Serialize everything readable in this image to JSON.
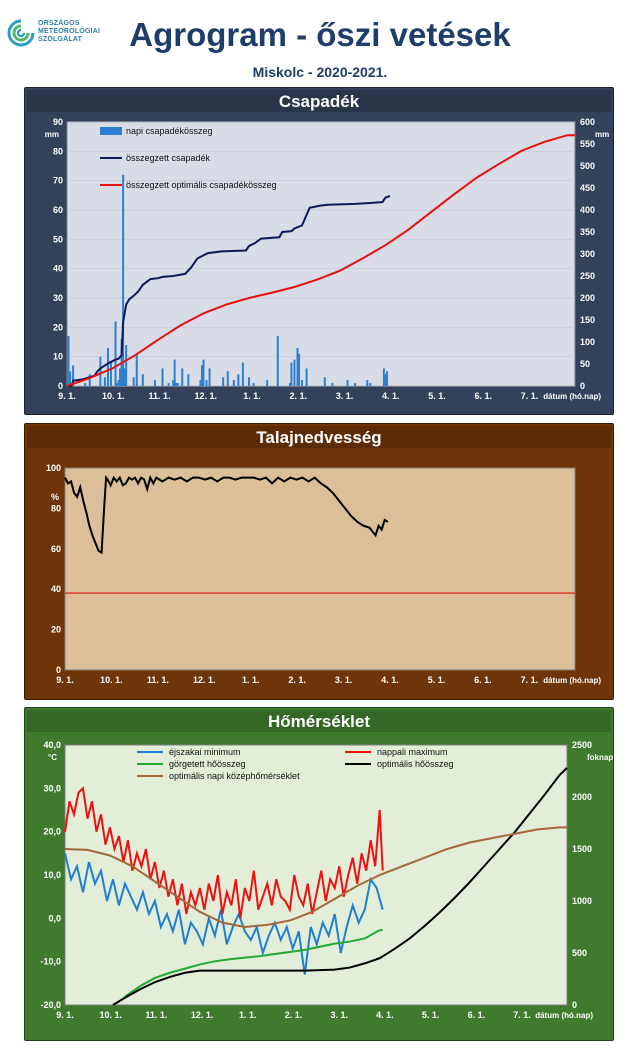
{
  "header": {
    "logo_lines": [
      "ORSZÁGOS",
      "METEOROLÓGIAI",
      "SZOLGÁLAT"
    ],
    "title": "Agrogram - őszi vetések",
    "subtitle": "Miskolc - 2020-2021."
  },
  "chart_data": [
    {
      "type": "bar",
      "title": "Csapadék",
      "ylabel_left": "mm",
      "ylabel_right": "mm",
      "xlabel": "dátum (hó.nap)",
      "x_ticks": [
        "9. 1.",
        "10. 1.",
        "11. 1.",
        "12. 1.",
        "1. 1.",
        "2. 1.",
        "3. 1.",
        "4. 1.",
        "5. 1.",
        "6. 1.",
        "7. 1."
      ],
      "y_left_ticks": [
        "0",
        "10",
        "20",
        "30",
        "40",
        "50",
        "60",
        "70",
        "80",
        "90"
      ],
      "y_right_ticks": [
        "0",
        "50",
        "100",
        "150",
        "200",
        "250",
        "300",
        "350",
        "400",
        "450",
        "500",
        "550",
        "600"
      ],
      "ylim_left": [
        0,
        90
      ],
      "ylim_right": [
        0,
        600
      ],
      "grid": true,
      "legend_position": "top-left",
      "series": [
        {
          "name": "napi csapadékösszeg",
          "kind": "bar",
          "axis": "left",
          "color": "#2f7fd0",
          "x_days": [
            1,
            2,
            4,
            12,
            15,
            22,
            25,
            27,
            29,
            32,
            33,
            34,
            35,
            36,
            37,
            38,
            39,
            44,
            46,
            50,
            58,
            63,
            67,
            70,
            71,
            72,
            73,
            76,
            80,
            88,
            89,
            90,
            92,
            94,
            103,
            106,
            110,
            113,
            116,
            120,
            123,
            132,
            139,
            147,
            148,
            150,
            152,
            153,
            155,
            158,
            170,
            175,
            185,
            190,
            198,
            200,
            209,
            210,
            211
          ],
          "values": [
            17,
            5,
            7,
            1,
            4,
            10,
            3,
            13,
            8,
            22,
            1,
            2,
            6,
            16,
            72,
            6,
            14,
            3,
            11,
            4,
            2,
            6,
            1,
            2,
            9,
            1,
            1,
            6,
            4,
            2,
            7,
            9,
            2,
            6,
            3,
            5,
            2,
            4,
            8,
            3,
            1,
            2,
            17,
            1,
            8,
            9,
            13,
            11,
            2,
            6,
            3,
            1,
            2,
            1,
            2,
            1,
            6,
            4,
            5
          ]
        },
        {
          "name": "összegzett csapadék",
          "kind": "line",
          "axis": "right",
          "color": "#0c1a55",
          "x_days": [
            0,
            3,
            4,
            10,
            15,
            18,
            20,
            22,
            28,
            32,
            34,
            36,
            37,
            39,
            41,
            44,
            47,
            50,
            55,
            60,
            63,
            70,
            78,
            82,
            86,
            93,
            102,
            118,
            120,
            124,
            128,
            140,
            142,
            148,
            150,
            155,
            160,
            167,
            172,
            190,
            200,
            208,
            210,
            213
          ],
          "values": [
            0,
            0,
            12,
            15,
            20,
            23,
            33,
            40,
            53,
            60,
            62,
            70,
            145,
            185,
            197,
            205,
            215,
            230,
            243,
            245,
            248,
            250,
            255,
            270,
            290,
            302,
            306,
            308,
            318,
            325,
            335,
            338,
            350,
            352,
            358,
            365,
            405,
            410,
            412,
            414,
            416,
            418,
            428,
            432
          ]
        },
        {
          "name": "összegzett optimális  csapadékösszeg",
          "kind": "line",
          "axis": "right",
          "color": "#e81010",
          "x_days": [
            0,
            15,
            30,
            45,
            60,
            75,
            90,
            105,
            120,
            135,
            150,
            165,
            180,
            195,
            210,
            225,
            240,
            255,
            270,
            285,
            300,
            315,
            330,
            335
          ],
          "values": [
            0,
            18,
            40,
            70,
            105,
            138,
            165,
            185,
            200,
            212,
            225,
            242,
            262,
            290,
            320,
            355,
            395,
            435,
            473,
            505,
            535,
            555,
            570,
            570
          ]
        }
      ]
    },
    {
      "type": "line",
      "title": "Talajnedvesség",
      "ylabel": "%",
      "xlabel": "dátum (hó.nap)",
      "x_ticks": [
        "9. 1.",
        "10. 1.",
        "11. 1.",
        "12. 1.",
        "1. 1.",
        "2. 1.",
        "3. 1.",
        "4. 1.",
        "5. 1.",
        "6. 1.",
        "7. 1."
      ],
      "y_ticks": [
        "0",
        "20",
        "40",
        "60",
        "80",
        "100"
      ],
      "ylim": [
        0,
        105
      ],
      "reference_line": 40,
      "grid": false,
      "series": [
        {
          "name": "",
          "color": "#000000",
          "x_days": [
            0,
            2,
            4,
            6,
            8,
            10,
            12,
            14,
            16,
            18,
            20,
            22,
            24,
            26,
            27,
            28,
            30,
            32,
            34,
            36,
            38,
            40,
            42,
            44,
            46,
            48,
            50,
            52,
            54,
            56,
            58,
            60,
            64,
            68,
            72,
            76,
            80,
            84,
            88,
            92,
            96,
            100,
            104,
            108,
            112,
            116,
            120,
            124,
            128,
            132,
            136,
            140,
            144,
            148,
            152,
            156,
            160,
            164,
            168,
            172,
            176,
            180,
            184,
            188,
            192,
            196,
            200,
            202,
            204,
            206,
            208,
            210,
            212
          ],
          "values": [
            100,
            97,
            98,
            92,
            90,
            95,
            88,
            82,
            75,
            70,
            66,
            62,
            61,
            88,
            100,
            99,
            96,
            100,
            98,
            100,
            96,
            97,
            100,
            99,
            100,
            97,
            100,
            99,
            94,
            100,
            97,
            100,
            98,
            100,
            99,
            100,
            98,
            100,
            100,
            99,
            100,
            98,
            100,
            100,
            99,
            100,
            100,
            100,
            99,
            100,
            97,
            100,
            98,
            100,
            99,
            100,
            98,
            100,
            97,
            95,
            92,
            88,
            84,
            80,
            77,
            75,
            74,
            72,
            70,
            75,
            73,
            78,
            77
          ]
        }
      ]
    },
    {
      "type": "line",
      "title": "Hőmérséklet",
      "ylabel_left": "°C",
      "ylabel_right": "foknap",
      "xlabel": "dátum (hó.nap)",
      "x_ticks": [
        "9. 1.",
        "10. 1.",
        "11. 1.",
        "12. 1.",
        "1. 1.",
        "2. 1.",
        "3. 1.",
        "4. 1.",
        "5. 1.",
        "6. 1.",
        "7. 1."
      ],
      "y_left_ticks": [
        "-20,0",
        "-10,0",
        "0,0",
        "10,0",
        "20,0",
        "30,0",
        "40,0"
      ],
      "y_right_ticks": [
        "0",
        "500",
        "1000",
        "1500",
        "2000",
        "2500"
      ],
      "ylim_left": [
        -20,
        40
      ],
      "ylim_right": [
        0,
        2500
      ],
      "grid": false,
      "legend_position": "top",
      "series": [
        {
          "name": "éjszakai minimum",
          "axis": "left",
          "color": "#1f7fd0",
          "x_days": [
            0,
            4,
            8,
            12,
            16,
            20,
            24,
            28,
            32,
            36,
            40,
            44,
            48,
            52,
            56,
            60,
            64,
            68,
            72,
            76,
            80,
            84,
            88,
            92,
            96,
            100,
            104,
            108,
            112,
            116,
            120,
            124,
            128,
            132,
            136,
            140,
            144,
            148,
            152,
            156,
            160,
            164,
            168,
            172,
            176,
            180,
            184,
            188,
            192,
            196,
            200,
            204,
            208,
            212
          ],
          "values": [
            15,
            9,
            12,
            6,
            13,
            8,
            11,
            4,
            9,
            3,
            8,
            5,
            2,
            6,
            1,
            4,
            -2,
            1,
            -3,
            2,
            -6,
            -1,
            -3,
            -6,
            0,
            -4,
            2,
            -6,
            -2,
            1,
            -3,
            -5,
            -2,
            -8,
            -4,
            -1,
            -5,
            -2,
            -7,
            -3,
            -13,
            -2,
            -6,
            -1,
            -4,
            1,
            -8,
            -2,
            3,
            -1,
            2,
            9,
            7,
            2
          ]
        },
        {
          "name": "nappali maximum",
          "axis": "left",
          "color": "#ee1111",
          "x_days": [
            0,
            3,
            6,
            9,
            12,
            15,
            18,
            21,
            24,
            27,
            30,
            33,
            36,
            39,
            42,
            45,
            48,
            51,
            54,
            57,
            60,
            63,
            66,
            69,
            72,
            75,
            78,
            81,
            84,
            87,
            90,
            93,
            96,
            99,
            102,
            105,
            108,
            111,
            114,
            117,
            120,
            123,
            126,
            129,
            132,
            135,
            138,
            141,
            144,
            147,
            150,
            153,
            156,
            159,
            162,
            165,
            168,
            171,
            174,
            177,
            180,
            183,
            186,
            189,
            192,
            195,
            198,
            201,
            204,
            207,
            210,
            212
          ],
          "values": [
            20,
            27,
            24,
            29,
            30,
            23,
            27,
            20,
            24,
            17,
            21,
            16,
            19,
            13,
            18,
            11,
            15,
            12,
            16,
            9,
            13,
            7,
            11,
            5,
            9,
            3,
            8,
            1,
            6,
            3,
            7,
            2,
            8,
            4,
            10,
            1,
            6,
            3,
            9,
            0,
            7,
            4,
            11,
            2,
            5,
            8,
            3,
            9,
            5,
            4,
            2,
            10,
            5,
            3,
            8,
            1,
            6,
            11,
            4,
            9,
            7,
            12,
            5,
            10,
            14,
            8,
            15,
            11,
            18,
            12,
            25,
            11
          ]
        },
        {
          "name": "görgetett hőösszeg",
          "axis": "right",
          "color": "#22aa33",
          "x_days": [
            40,
            50,
            60,
            70,
            80,
            90,
            100,
            110,
            120,
            130,
            140,
            150,
            160,
            170,
            180,
            190,
            200,
            205,
            210,
            212
          ],
          "values": [
            80,
            180,
            260,
            310,
            350,
            390,
            420,
            440,
            455,
            470,
            490,
            510,
            530,
            560,
            590,
            610,
            640,
            680,
            720,
            720
          ]
        },
        {
          "name": "optimális hőösszeg",
          "axis": "right",
          "color": "#000000",
          "x_days": [
            32,
            40,
            50,
            60,
            70,
            80,
            90,
            100,
            120,
            140,
            160,
            180,
            190,
            200,
            210,
            220,
            230,
            240,
            250,
            260,
            270,
            280,
            290,
            300,
            310,
            320,
            330,
            335
          ],
          "values": [
            0,
            70,
            150,
            220,
            270,
            310,
            330,
            330,
            330,
            330,
            330,
            340,
            360,
            400,
            450,
            540,
            640,
            760,
            890,
            1030,
            1180,
            1340,
            1500,
            1660,
            1840,
            2020,
            2210,
            2280
          ]
        },
        {
          "name": "optimális napi középhőmérséklet",
          "axis": "left",
          "color": "#a5683a",
          "x_days": [
            0,
            15,
            30,
            45,
            60,
            75,
            90,
            105,
            120,
            135,
            150,
            165,
            180,
            195,
            210,
            225,
            240,
            255,
            270,
            285,
            300,
            315,
            330,
            335
          ],
          "values": [
            16,
            15.8,
            14.5,
            12,
            8.5,
            5,
            1.5,
            -1,
            -2,
            -1.5,
            -0.5,
            1.5,
            4.5,
            7.5,
            10,
            12,
            14,
            16,
            17.5,
            18.5,
            19.5,
            20.5,
            21,
            21
          ]
        }
      ]
    }
  ]
}
